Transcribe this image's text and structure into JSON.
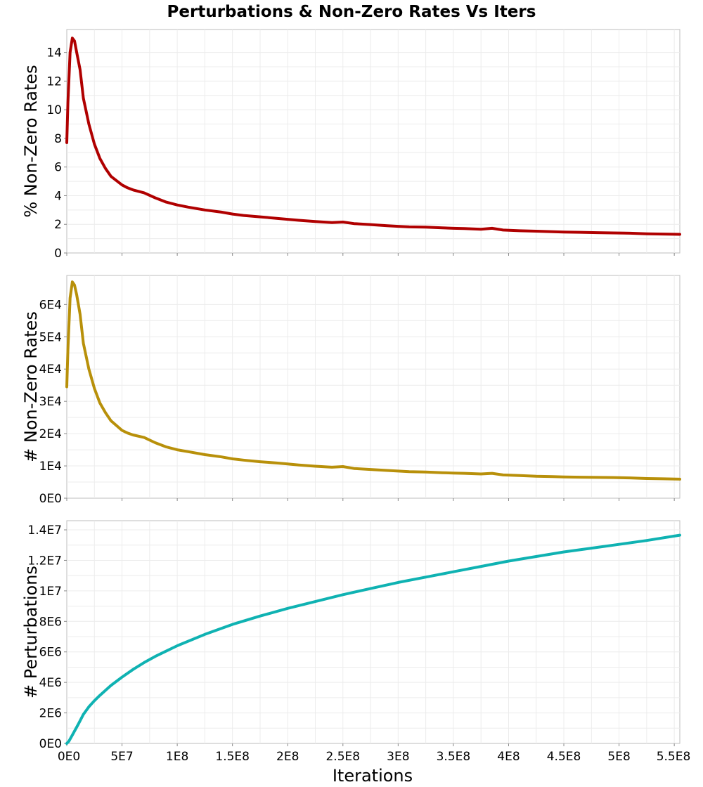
{
  "chart_data": {
    "title": "Perturbations & Non-Zero Rates Vs Iters",
    "xlabel": "Iterations",
    "xlim": [
      0,
      555000000
    ],
    "x_ticks": [
      {
        "value": 0,
        "label": "0E0"
      },
      {
        "value": 50000000,
        "label": "5E7"
      },
      {
        "value": 100000000,
        "label": "1E8"
      },
      {
        "value": 150000000,
        "label": "1.5E8"
      },
      {
        "value": 200000000,
        "label": "2E8"
      },
      {
        "value": 250000000,
        "label": "2.5E8"
      },
      {
        "value": 300000000,
        "label": "3E8"
      },
      {
        "value": 350000000,
        "label": "3.5E8"
      },
      {
        "value": 400000000,
        "label": "4E8"
      },
      {
        "value": 450000000,
        "label": "4.5E8"
      },
      {
        "value": 500000000,
        "label": "5E8"
      },
      {
        "value": 550000000,
        "label": "5.5E8"
      }
    ],
    "panels": [
      {
        "type": "line",
        "ylabel": "% Non-Zero Rates",
        "ylim": [
          0,
          15.6
        ],
        "grid": true,
        "color": "#b00000",
        "y_ticks": [
          {
            "value": 0,
            "label": "0"
          },
          {
            "value": 2,
            "label": "2"
          },
          {
            "value": 4,
            "label": "4"
          },
          {
            "value": 6,
            "label": "6"
          },
          {
            "value": 8,
            "label": "8"
          },
          {
            "value": 10,
            "label": "10"
          },
          {
            "value": 12,
            "label": "12"
          },
          {
            "value": 14,
            "label": "14"
          }
        ],
        "x": [
          0,
          1000000,
          3000000,
          5000000,
          7000000,
          9000000,
          12000000,
          15000000,
          20000000,
          25000000,
          30000000,
          35000000,
          40000000,
          45000000,
          50000000,
          55000000,
          60000000,
          70000000,
          80000000,
          90000000,
          100000000,
          110000000,
          125000000,
          140000000,
          150000000,
          160000000,
          175000000,
          190000000,
          200000000,
          210000000,
          225000000,
          240000000,
          250000000,
          260000000,
          275000000,
          290000000,
          300000000,
          310000000,
          325000000,
          340000000,
          350000000,
          360000000,
          375000000,
          385000000,
          395000000,
          410000000,
          425000000,
          440000000,
          450000000,
          465000000,
          480000000,
          495000000,
          510000000,
          525000000,
          540000000,
          555000000
        ],
        "values": [
          7.7,
          10.5,
          14.0,
          15.0,
          14.8,
          14.0,
          12.8,
          10.8,
          9.0,
          7.6,
          6.6,
          5.9,
          5.35,
          5.05,
          4.75,
          4.55,
          4.4,
          4.2,
          3.85,
          3.55,
          3.35,
          3.2,
          3.0,
          2.85,
          2.72,
          2.62,
          2.52,
          2.42,
          2.35,
          2.28,
          2.2,
          2.12,
          2.16,
          2.05,
          1.98,
          1.9,
          1.86,
          1.82,
          1.8,
          1.75,
          1.72,
          1.7,
          1.66,
          1.72,
          1.6,
          1.55,
          1.52,
          1.48,
          1.46,
          1.44,
          1.42,
          1.4,
          1.38,
          1.34,
          1.32,
          1.3
        ]
      },
      {
        "type": "line",
        "ylabel": "# Non-Zero Rates",
        "ylim": [
          0,
          69000
        ],
        "grid": true,
        "color": "#b8900a",
        "y_ticks": [
          {
            "value": 0,
            "label": "0E0"
          },
          {
            "value": 10000,
            "label": "1E4"
          },
          {
            "value": 20000,
            "label": "2E4"
          },
          {
            "value": 30000,
            "label": "3E4"
          },
          {
            "value": 40000,
            "label": "4E4"
          },
          {
            "value": 50000,
            "label": "5E4"
          },
          {
            "value": 60000,
            "label": "6E4"
          }
        ],
        "x": [
          0,
          1000000,
          3000000,
          5000000,
          7000000,
          9000000,
          12000000,
          15000000,
          20000000,
          25000000,
          30000000,
          35000000,
          40000000,
          45000000,
          50000000,
          55000000,
          60000000,
          70000000,
          80000000,
          90000000,
          100000000,
          110000000,
          125000000,
          140000000,
          150000000,
          160000000,
          175000000,
          190000000,
          200000000,
          210000000,
          225000000,
          240000000,
          250000000,
          260000000,
          275000000,
          290000000,
          300000000,
          310000000,
          325000000,
          340000000,
          350000000,
          360000000,
          375000000,
          385000000,
          395000000,
          410000000,
          425000000,
          440000000,
          450000000,
          465000000,
          480000000,
          495000000,
          510000000,
          525000000,
          540000000,
          555000000
        ],
        "values": [
          34500,
          46000,
          62000,
          67000,
          66000,
          63000,
          57000,
          48000,
          40000,
          34000,
          29500,
          26500,
          24000,
          22500,
          21000,
          20200,
          19600,
          18800,
          17200,
          15900,
          15000,
          14400,
          13500,
          12800,
          12200,
          11800,
          11300,
          10900,
          10600,
          10300,
          9900,
          9600,
          9800,
          9200,
          8900,
          8600,
          8400,
          8200,
          8100,
          7900,
          7800,
          7700,
          7500,
          7700,
          7200,
          7000,
          6800,
          6700,
          6600,
          6500,
          6450,
          6400,
          6300,
          6100,
          6000,
          5900
        ]
      },
      {
        "type": "line",
        "ylabel": "# Perturbations",
        "ylim": [
          0,
          14600000
        ],
        "grid": true,
        "color": "#0fb2b2",
        "y_ticks": [
          {
            "value": 0,
            "label": "0E0"
          },
          {
            "value": 2000000,
            "label": "2E6"
          },
          {
            "value": 4000000,
            "label": "4E6"
          },
          {
            "value": 6000000,
            "label": "6E6"
          },
          {
            "value": 8000000,
            "label": "8E6"
          },
          {
            "value": 10000000,
            "label": "1E7"
          },
          {
            "value": 12000000,
            "label": "1.2E7"
          },
          {
            "value": 14000000,
            "label": "1.4E7"
          }
        ],
        "x": [
          0,
          2000000,
          5000000,
          10000000,
          15000000,
          20000000,
          25000000,
          30000000,
          40000000,
          50000000,
          60000000,
          70000000,
          80000000,
          90000000,
          100000000,
          125000000,
          150000000,
          175000000,
          200000000,
          225000000,
          250000000,
          275000000,
          300000000,
          325000000,
          350000000,
          375000000,
          400000000,
          425000000,
          450000000,
          475000000,
          500000000,
          525000000,
          555000000
        ],
        "values": [
          0,
          150000,
          550000,
          1200000,
          1900000,
          2400000,
          2800000,
          3150000,
          3800000,
          4350000,
          4850000,
          5300000,
          5700000,
          6050000,
          6400000,
          7150000,
          7800000,
          8350000,
          8850000,
          9300000,
          9750000,
          10150000,
          10550000,
          10900000,
          11250000,
          11600000,
          11950000,
          12250000,
          12550000,
          12800000,
          13050000,
          13300000,
          13650000
        ]
      }
    ]
  }
}
